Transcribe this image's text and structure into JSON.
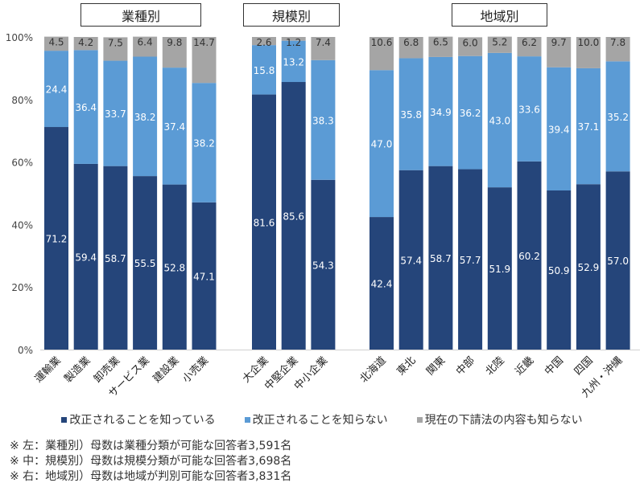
{
  "chart_data": {
    "type": "bar",
    "stacked": true,
    "percent_stacked": true,
    "yaxis": {
      "ticks": [
        "0%",
        "20%",
        "40%",
        "60%",
        "80%",
        "100%"
      ],
      "range": [
        0,
        100
      ]
    },
    "series_names": [
      "改正されることを知っている",
      "改正されることを知らない",
      "現在の下請法の内容も知らない"
    ],
    "series_colors": [
      "#25457a",
      "#5b9bd5",
      "#a5a5a5"
    ],
    "groups": [
      {
        "title": "業種別",
        "categories": [
          "運輸業",
          "製造業",
          "卸売業",
          "サービス業",
          "建設業",
          "小売業"
        ],
        "series": [
          {
            "name": "改正されることを知っている",
            "values": [
              71.2,
              59.4,
              58.7,
              55.5,
              52.8,
              47.1
            ]
          },
          {
            "name": "改正されることを知らない",
            "values": [
              24.4,
              36.4,
              33.7,
              38.2,
              37.4,
              38.2
            ]
          },
          {
            "name": "現在の下請法の内容も知らない",
            "values": [
              4.5,
              4.2,
              7.5,
              6.4,
              9.8,
              14.7
            ]
          }
        ]
      },
      {
        "title": "規模別",
        "categories": [
          "大企業",
          "中堅企業",
          "中小企業"
        ],
        "series": [
          {
            "name": "改正されることを知っている",
            "values": [
              81.6,
              85.6,
              54.3
            ]
          },
          {
            "name": "改正されることを知らない",
            "values": [
              15.8,
              13.2,
              38.3
            ]
          },
          {
            "name": "現在の下請法の内容も知らない",
            "values": [
              2.6,
              1.2,
              7.4
            ]
          }
        ]
      },
      {
        "title": "地域別",
        "categories": [
          "北海道",
          "東北",
          "関東",
          "中部",
          "北陸",
          "近畿",
          "中国",
          "四国",
          "九州・沖縄"
        ],
        "series": [
          {
            "name": "改正されることを知っている",
            "values": [
              42.4,
              57.4,
              58.7,
              57.7,
              51.9,
              60.2,
              50.9,
              52.9,
              57.0
            ]
          },
          {
            "name": "改正されることを知らない",
            "values": [
              47.0,
              35.8,
              34.9,
              36.2,
              43.0,
              33.6,
              39.4,
              37.1,
              35.2
            ]
          },
          {
            "name": "現在の下請法の内容も知らない",
            "values": [
              10.6,
              6.8,
              6.5,
              6.0,
              5.2,
              6.2,
              9.7,
              10.0,
              7.8
            ]
          }
        ]
      }
    ],
    "legend": "bottom"
  },
  "legend_items": [
    {
      "label": "改正されることを知っている",
      "color": "#25457a"
    },
    {
      "label": "改正されることを知らない",
      "color": "#5b9bd5"
    },
    {
      "label": "現在の下請法の内容も知らない",
      "color": "#a5a5a5"
    }
  ],
  "notes": [
    "※ 左：業種別）母数は業種分類が可能な回答者3,591名",
    "※ 中：規模別）母数は規模分類が可能な回答者3,698名",
    "※ 右：地域別）母数は地域が判別可能な回答者3,831名"
  ]
}
